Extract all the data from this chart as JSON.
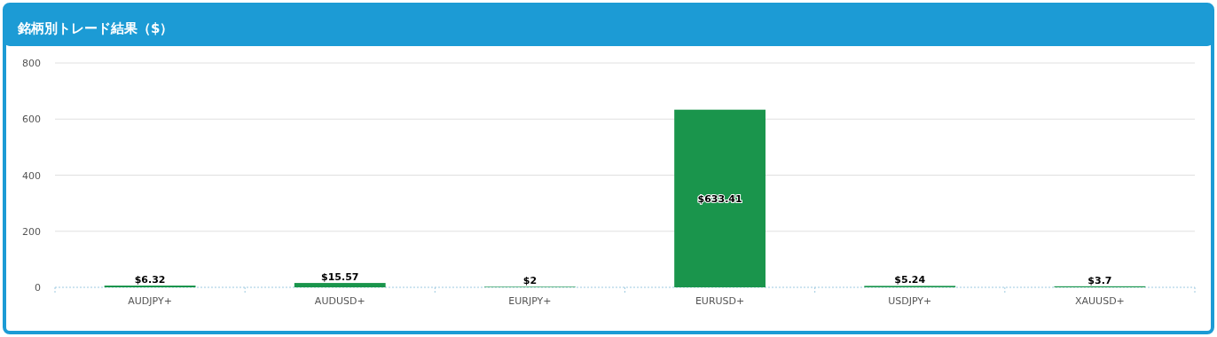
{
  "chart_data": {
    "type": "bar",
    "title": "銘柄別トレード結果（$）",
    "categories": [
      "AUDJPY+",
      "AUDUSD+",
      "EURJPY+",
      "EURUSD+",
      "USDJPY+",
      "XAUUSD+"
    ],
    "values": [
      6.32,
      15.57,
      2,
      633.41,
      5.24,
      3.7
    ],
    "value_labels": [
      "$6.32",
      "$15.57",
      "$2",
      "$633.41",
      "$5.24",
      "$3.7"
    ],
    "color": "#1a954c",
    "ylim": [
      0,
      800
    ],
    "yticks": [
      0,
      200,
      400,
      600,
      800
    ],
    "grid": "y"
  }
}
